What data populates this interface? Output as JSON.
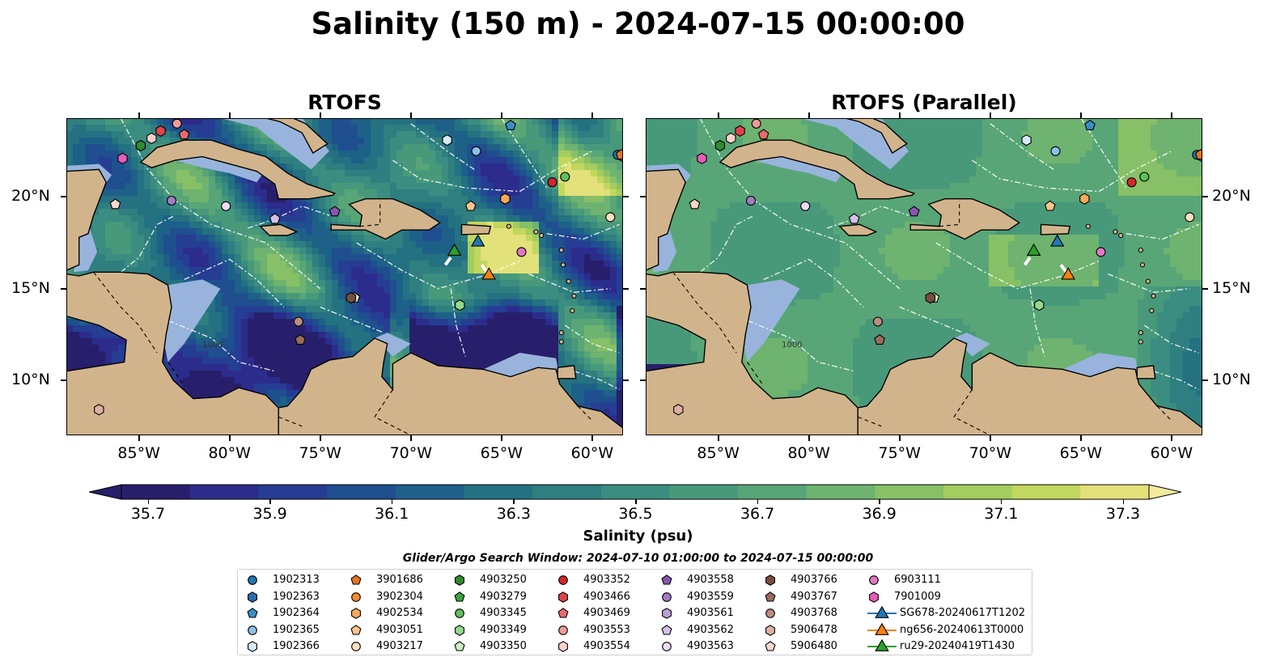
{
  "title": "Salinity (150 m) - 2024-07-15 00:00:00",
  "panels": [
    {
      "title": "RTOFS"
    },
    {
      "title": "RTOFS (Parallel)"
    }
  ],
  "map": {
    "lon_range": [
      -89,
      -58.3
    ],
    "lat_range": [
      7,
      24.3
    ],
    "lon_ticks": [
      -85,
      -80,
      -75,
      -70,
      -65,
      -60
    ],
    "lon_tick_labels": [
      "85°W",
      "80°W",
      "75°W",
      "70°W",
      "65°W",
      "60°W"
    ],
    "lat_ticks": [
      10,
      15,
      20
    ],
    "lat_tick_labels": [
      "10°N",
      "15°N",
      "20°N"
    ],
    "colors": {
      "land": "#d2b48c",
      "shelf": "#98b4dc",
      "eez_lines": "#ffffff",
      "coast": "#000000"
    },
    "bathymetry_label": "1000"
  },
  "colorbar": {
    "label": "Salinity (psu)",
    "min": 35.7,
    "max": 37.3,
    "ticks": [
      35.7,
      35.9,
      36.1,
      36.3,
      36.5,
      36.7,
      36.9,
      37.1,
      37.3
    ],
    "tick_labels": [
      "35.7",
      "35.9",
      "36.1",
      "36.3",
      "36.5",
      "36.7",
      "36.9",
      "37.1",
      "37.3"
    ],
    "colors": [
      "#271f6b",
      "#2c2c8c",
      "#253e93",
      "#1f4f8e",
      "#1d6088",
      "#247181",
      "#2f7f80",
      "#3a8d80",
      "#48997a",
      "#58a677",
      "#6eb370",
      "#87c066",
      "#a4cc5e",
      "#c2d75e",
      "#e2e17a"
    ],
    "extend": "both"
  },
  "search_window": "Glider/Argo Search Window: 2024-07-10 01:00:00 to 2024-07-15 00:00:00",
  "legend": {
    "items": [
      {
        "label": "1902313",
        "marker": "circle",
        "color": "#1f77b4"
      },
      {
        "label": "1902363",
        "marker": "hexagon",
        "color": "#2a6fa8"
      },
      {
        "label": "1902364",
        "marker": "pentagon",
        "color": "#3a8fc8"
      },
      {
        "label": "1902365",
        "marker": "circle",
        "color": "#8ec1e8"
      },
      {
        "label": "1902366",
        "marker": "hexagon",
        "color": "#d6eafa"
      },
      {
        "label": "3901686",
        "marker": "pentagon",
        "color": "#e8741a"
      },
      {
        "label": "3902304",
        "marker": "circle",
        "color": "#f58a2e"
      },
      {
        "label": "4902534",
        "marker": "hexagon",
        "color": "#f7a85a"
      },
      {
        "label": "4903051",
        "marker": "pentagon",
        "color": "#f9c58c"
      },
      {
        "label": "4903217",
        "marker": "circle",
        "color": "#fde0c0"
      },
      {
        "label": "4903250",
        "marker": "hexagon",
        "color": "#2e8b2e"
      },
      {
        "label": "4903279",
        "marker": "pentagon",
        "color": "#3fa33f"
      },
      {
        "label": "4903345",
        "marker": "circle",
        "color": "#5cbf5c"
      },
      {
        "label": "4903349",
        "marker": "hexagon",
        "color": "#93d98a"
      },
      {
        "label": "4903350",
        "marker": "pentagon",
        "color": "#ccf0c4"
      },
      {
        "label": "4903352",
        "marker": "circle",
        "color": "#d62728"
      },
      {
        "label": "4903466",
        "marker": "hexagon",
        "color": "#e0424a"
      },
      {
        "label": "4903469",
        "marker": "pentagon",
        "color": "#e86a6a"
      },
      {
        "label": "4903553",
        "marker": "circle",
        "color": "#f29a98"
      },
      {
        "label": "4903554",
        "marker": "hexagon",
        "color": "#fbd0cc"
      },
      {
        "label": "4903558",
        "marker": "pentagon",
        "color": "#8856b0"
      },
      {
        "label": "4903559",
        "marker": "circle",
        "color": "#a47cc4"
      },
      {
        "label": "4903561",
        "marker": "hexagon",
        "color": "#bd9ed6"
      },
      {
        "label": "4903562",
        "marker": "pentagon",
        "color": "#d6c0ea"
      },
      {
        "label": "4903563",
        "marker": "circle",
        "color": "#eedcfa"
      },
      {
        "label": "4903766",
        "marker": "hexagon",
        "color": "#7a4e3e"
      },
      {
        "label": "4903767",
        "marker": "pentagon",
        "color": "#9a6c5c"
      },
      {
        "label": "4903768",
        "marker": "circle",
        "color": "#bc8c7e"
      },
      {
        "label": "5906478",
        "marker": "hexagon",
        "color": "#dcb0a4"
      },
      {
        "label": "5906480",
        "marker": "pentagon",
        "color": "#f6d8cc"
      },
      {
        "label": "6903111",
        "marker": "circle",
        "color": "#e377c2"
      },
      {
        "label": "7901009",
        "marker": "hexagon",
        "color": "#e85cb8"
      },
      {
        "label": "SG678-20240617T1202",
        "marker": "triangle-line",
        "color": "#1f77b4"
      },
      {
        "label": "ng656-20240613T0000",
        "marker": "triangle-line",
        "color": "#ff7f0e"
      },
      {
        "label": "ru29-20240419T1430",
        "marker": "triangle-line",
        "color": "#2ca02c"
      }
    ]
  },
  "argo_floats": [
    {
      "id": "1902313",
      "lon": -58.6,
      "lat": 22.3
    },
    {
      "id": "1902363",
      "lon": -58.3,
      "lat": 22.2
    },
    {
      "id": "1902364",
      "lon": -64.5,
      "lat": 23.9
    },
    {
      "id": "1902365",
      "lon": -66.4,
      "lat": 22.5
    },
    {
      "id": "1902366",
      "lon": -68.0,
      "lat": 23.1
    },
    {
      "id": "3901686",
      "lon": -58.4,
      "lat": 22.3
    },
    {
      "id": "4902534",
      "lon": -64.8,
      "lat": 19.9
    },
    {
      "id": "4903051",
      "lon": -66.7,
      "lat": 19.5
    },
    {
      "id": "4903217",
      "lon": -59.0,
      "lat": 18.9
    },
    {
      "id": "4903250",
      "lon": -84.9,
      "lat": 22.8
    },
    {
      "id": "4903345",
      "lon": -61.5,
      "lat": 21.1
    },
    {
      "id": "4903349",
      "lon": -67.3,
      "lat": 14.1
    },
    {
      "id": "4903350",
      "lon": -73.1,
      "lat": 14.5
    },
    {
      "id": "4903352",
      "lon": -62.2,
      "lat": 20.8
    },
    {
      "id": "4903466",
      "lon": -83.8,
      "lat": 23.6
    },
    {
      "id": "4903469",
      "lon": -82.5,
      "lat": 23.4
    },
    {
      "id": "4903553",
      "lon": -82.9,
      "lat": 24.0
    },
    {
      "id": "4903554",
      "lon": -84.3,
      "lat": 23.2
    },
    {
      "id": "4903558",
      "lon": -74.2,
      "lat": 19.2
    },
    {
      "id": "4903559",
      "lon": -83.2,
      "lat": 19.8
    },
    {
      "id": "4903562",
      "lon": -77.5,
      "lat": 18.8
    },
    {
      "id": "4903563",
      "lon": -80.2,
      "lat": 19.5
    },
    {
      "id": "4903766",
      "lon": -73.3,
      "lat": 14.5
    },
    {
      "id": "4903767",
      "lon": -76.1,
      "lat": 12.2
    },
    {
      "id": "4903768",
      "lon": -76.2,
      "lat": 13.2
    },
    {
      "id": "5906478",
      "lon": -87.2,
      "lat": 8.4
    },
    {
      "id": "5906480",
      "lon": -86.3,
      "lat": 19.6
    },
    {
      "id": "6903111",
      "lon": -63.9,
      "lat": 17.0
    },
    {
      "id": "7901009",
      "lon": -85.9,
      "lat": 22.1
    }
  ],
  "gliders": [
    {
      "id": "SG678-20240617T1202",
      "lon": -66.3,
      "lat": 17.6
    },
    {
      "id": "ng656-20240613T0000",
      "lon": -65.7,
      "lat": 15.8
    },
    {
      "id": "ru29-20240419T1430",
      "lon": -67.6,
      "lat": 17.1
    }
  ]
}
